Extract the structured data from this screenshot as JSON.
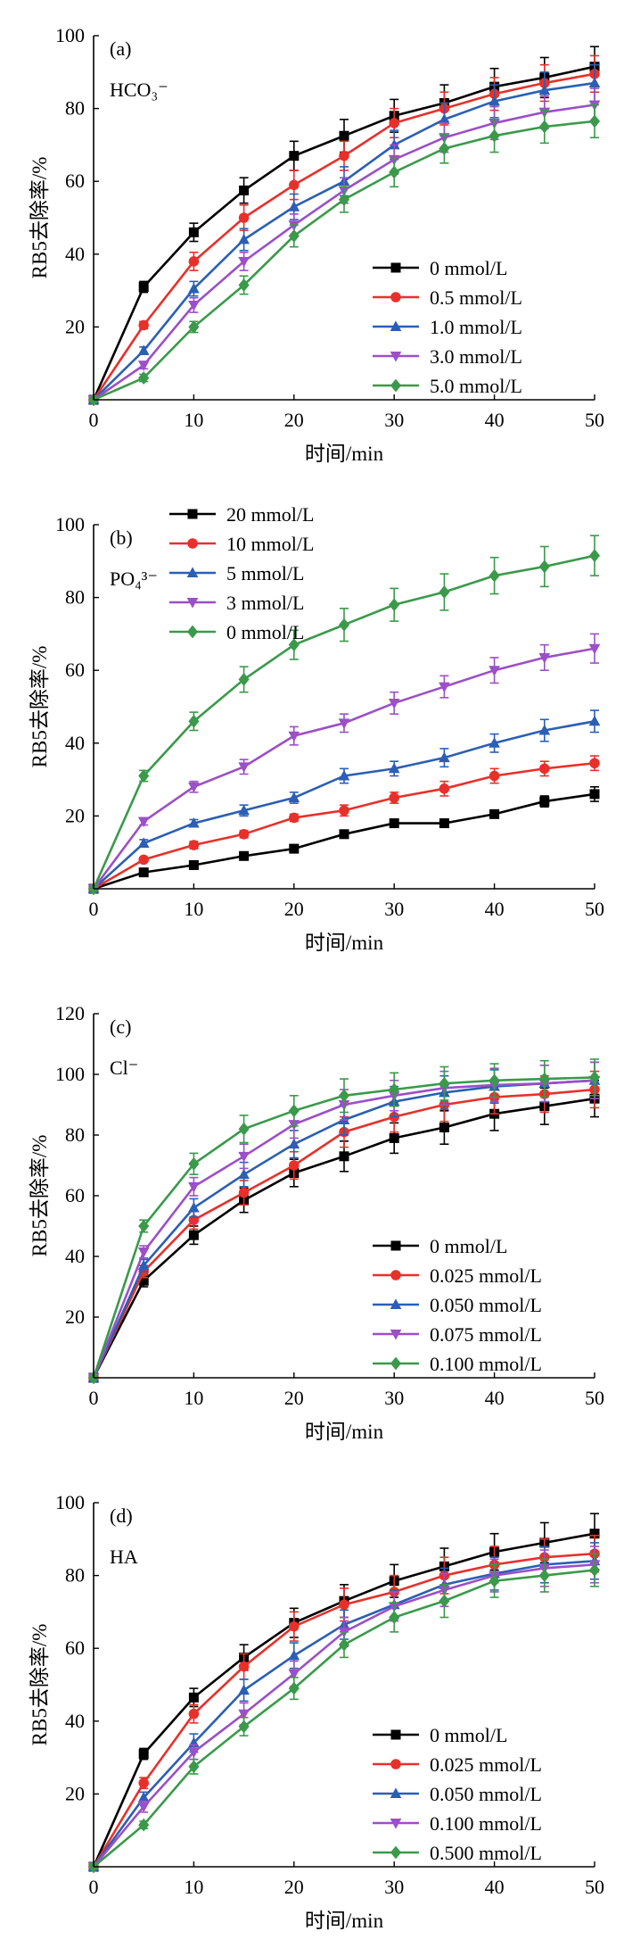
{
  "chart_data": [
    {
      "type": "line",
      "panel_label": "(a)",
      "annotation": "HCO₃⁻",
      "xlabel": "时间/min",
      "ylabel": "RB5去除率/%",
      "xlim": [
        0,
        50
      ],
      "ylim": [
        0,
        100
      ],
      "xticks": [
        0,
        10,
        20,
        30,
        40,
        50
      ],
      "yticks": [
        20,
        40,
        60,
        80,
        100
      ],
      "legend_position": "bottom-right",
      "x": [
        0,
        5,
        10,
        15,
        20,
        25,
        30,
        35,
        40,
        45,
        50
      ],
      "series": [
        {
          "name": "0 mmol/L",
          "color": "#000000",
          "marker": "square",
          "values": [
            0,
            31,
            46,
            57.5,
            67,
            72.5,
            78,
            81.5,
            86,
            88.5,
            91.5
          ],
          "errors": [
            0,
            1.5,
            2.5,
            3.5,
            4,
            4.5,
            4.5,
            5,
            5,
            5.5,
            5.5
          ]
        },
        {
          "name": "0.5 mmol/L",
          "color": "#e8302a",
          "marker": "circle",
          "values": [
            0,
            20.5,
            38,
            50,
            59,
            67,
            76,
            80,
            84,
            87,
            89.5
          ],
          "errors": [
            0,
            1,
            2.5,
            3.5,
            4,
            4,
            4,
            4.5,
            4.5,
            5,
            5
          ]
        },
        {
          "name": "1.0 mmol/L",
          "color": "#2b5fb5",
          "marker": "triangle-up",
          "values": [
            0,
            13.5,
            30.5,
            44,
            53,
            60,
            70,
            77,
            82,
            85,
            87
          ],
          "errors": [
            0,
            1,
            2,
            3,
            3.5,
            4,
            4,
            4.5,
            4.5,
            5,
            5
          ]
        },
        {
          "name": "3.0 mmol/L",
          "color": "#9b4fc8",
          "marker": "triangle-down",
          "values": [
            0,
            9.5,
            26,
            38,
            48,
            57.5,
            66,
            72,
            76,
            79,
            81
          ],
          "errors": [
            0,
            1,
            2,
            2.5,
            3,
            3.5,
            4,
            4,
            4.5,
            4.5,
            4.5
          ]
        },
        {
          "name": "5.0 mmol/L",
          "color": "#3a9a4a",
          "marker": "diamond",
          "values": [
            0,
            6,
            20,
            31.5,
            45,
            55,
            62.5,
            69,
            72.5,
            75,
            76.5
          ],
          "errors": [
            0,
            1,
            1.5,
            2.5,
            3,
            3.5,
            4,
            4,
            4.5,
            4.5,
            4.5
          ]
        }
      ]
    },
    {
      "type": "line",
      "panel_label": "(b)",
      "annotation": "PO₄³⁻",
      "xlabel": "时间/min",
      "ylabel": "RB5去除率/%",
      "xlim": [
        0,
        50
      ],
      "ylim": [
        0,
        100
      ],
      "xticks": [
        0,
        10,
        20,
        30,
        40,
        50
      ],
      "yticks": [
        20,
        40,
        60,
        80,
        100
      ],
      "legend_position": "top-left",
      "x": [
        0,
        5,
        10,
        15,
        20,
        25,
        30,
        35,
        40,
        45,
        50
      ],
      "series": [
        {
          "name": "20 mmol/L",
          "color": "#000000",
          "marker": "square",
          "values": [
            0,
            4.5,
            6.5,
            9,
            11,
            15,
            18,
            18,
            20.5,
            24,
            26
          ],
          "errors": [
            0,
            0.5,
            0.5,
            0.5,
            0.5,
            1,
            1,
            1,
            1,
            1.5,
            2
          ]
        },
        {
          "name": "10 mmol/L",
          "color": "#e8302a",
          "marker": "circle",
          "values": [
            0,
            8,
            12,
            15,
            19.5,
            21.5,
            25,
            27.5,
            31,
            33,
            34.5
          ],
          "errors": [
            0,
            0.5,
            1,
            1,
            1,
            1.5,
            1.5,
            2,
            2,
            2,
            2
          ]
        },
        {
          "name": "5 mmol/L",
          "color": "#2b5fb5",
          "marker": "triangle-up",
          "values": [
            0,
            12.5,
            18,
            21.5,
            25,
            31,
            33,
            36,
            40,
            43.5,
            46
          ],
          "errors": [
            0,
            1,
            1,
            1.5,
            1.5,
            2,
            2,
            2.5,
            2.5,
            3,
            3
          ]
        },
        {
          "name": "3 mmol/L",
          "color": "#9b4fc8",
          "marker": "triangle-down",
          "values": [
            0,
            18.5,
            28,
            33.5,
            42,
            45.5,
            51,
            55.5,
            60,
            63.5,
            66
          ],
          "errors": [
            0,
            1,
            1.5,
            2,
            2.5,
            2.5,
            3,
            3,
            3.5,
            3.5,
            4
          ]
        },
        {
          "name": "0 mmol/L",
          "color": "#3a9a4a",
          "marker": "diamond",
          "values": [
            0,
            31,
            46,
            57.5,
            67,
            72.5,
            78,
            81.5,
            86,
            88.5,
            91.5
          ],
          "errors": [
            0,
            1.5,
            2.5,
            3.5,
            4,
            4.5,
            4.5,
            5,
            5,
            5.5,
            5.5
          ]
        }
      ]
    },
    {
      "type": "line",
      "panel_label": "(c)",
      "annotation": "Cl⁻",
      "xlabel": "时间/min",
      "ylabel": "RB5去除率/%",
      "xlim": [
        0,
        50
      ],
      "ylim": [
        0,
        120
      ],
      "xticks": [
        0,
        10,
        20,
        30,
        40,
        50
      ],
      "yticks": [
        20,
        40,
        60,
        80,
        100,
        120
      ],
      "legend_position": "bottom-right",
      "x": [
        0,
        5,
        10,
        15,
        20,
        25,
        30,
        35,
        40,
        45,
        50
      ],
      "series": [
        {
          "name": "0 mmol/L",
          "color": "#000000",
          "marker": "square",
          "values": [
            0,
            32,
            47,
            58.5,
            67.5,
            73,
            79,
            82.5,
            87,
            89.5,
            92
          ],
          "errors": [
            0,
            2,
            3,
            4,
            4.5,
            5,
            5,
            5.5,
            5.5,
            6,
            6
          ]
        },
        {
          "name": "0.025 mmol/L",
          "color": "#e8302a",
          "marker": "circle",
          "values": [
            0,
            35,
            52,
            61,
            70,
            81,
            86,
            90,
            92.5,
            93.5,
            95
          ],
          "errors": [
            0,
            2,
            3,
            4,
            4.5,
            5,
            5,
            5.5,
            5.5,
            6,
            6
          ]
        },
        {
          "name": "0.050 mmol/L",
          "color": "#2b5fb5",
          "marker": "triangle-up",
          "values": [
            0,
            37,
            56,
            67,
            77,
            85,
            91,
            94,
            96,
            97,
            98
          ],
          "errors": [
            0,
            2,
            3,
            4,
            4.5,
            5,
            5,
            5.5,
            5.5,
            6,
            6
          ]
        },
        {
          "name": "0.075 mmol/L",
          "color": "#9b4fc8",
          "marker": "triangle-down",
          "values": [
            0,
            41.5,
            63,
            73,
            83.5,
            90,
            93,
            95.5,
            96.5,
            97,
            98
          ],
          "errors": [
            0,
            2,
            3,
            4,
            4.5,
            5,
            5,
            5.5,
            5.5,
            6,
            6
          ]
        },
        {
          "name": "0.100 mmol/L",
          "color": "#3a9a4a",
          "marker": "diamond",
          "values": [
            0,
            50,
            70.5,
            82,
            88,
            93,
            95,
            97,
            98,
            98.5,
            99
          ],
          "errors": [
            0,
            2,
            3.5,
            4.5,
            5,
            5.5,
            5.5,
            5.5,
            5.5,
            6,
            6
          ]
        }
      ]
    },
    {
      "type": "line",
      "panel_label": "(d)",
      "annotation": "HA",
      "xlabel": "时间/min",
      "ylabel": "RB5去除率/%",
      "xlim": [
        0,
        50
      ],
      "ylim": [
        0,
        100
      ],
      "xticks": [
        0,
        10,
        20,
        30,
        40,
        50
      ],
      "yticks": [
        20,
        40,
        60,
        80,
        100
      ],
      "legend_position": "bottom-right",
      "x": [
        0,
        5,
        10,
        15,
        20,
        25,
        30,
        35,
        40,
        45,
        50
      ],
      "series": [
        {
          "name": "0 mmol/L",
          "color": "#000000",
          "marker": "square",
          "values": [
            0,
            31,
            46.5,
            57.5,
            67,
            73,
            78.5,
            82.5,
            86.5,
            89,
            91.5
          ],
          "errors": [
            0,
            1.5,
            2.5,
            3.5,
            4,
            4.5,
            4.5,
            5,
            5,
            5.5,
            5.5
          ]
        },
        {
          "name": "0.025 mmol/L",
          "color": "#e8302a",
          "marker": "circle",
          "values": [
            0,
            23,
            42,
            55,
            66,
            72,
            75.5,
            80,
            83,
            85,
            86
          ],
          "errors": [
            0,
            1.5,
            2.5,
            3.5,
            4,
            4.5,
            4.5,
            5,
            5,
            5,
            5
          ]
        },
        {
          "name": "0.050 mmol/L",
          "color": "#2b5fb5",
          "marker": "triangle-up",
          "values": [
            0,
            19,
            34,
            48.5,
            58,
            66.5,
            72,
            77.5,
            80.5,
            83,
            84
          ],
          "errors": [
            0,
            1.5,
            2.5,
            3,
            3.5,
            4,
            4,
            4.5,
            4.5,
            5,
            5
          ]
        },
        {
          "name": "0.100 mmol/L",
          "color": "#9b4fc8",
          "marker": "triangle-down",
          "values": [
            0,
            16.5,
            31.5,
            42,
            53,
            64.5,
            71.5,
            76,
            80,
            82,
            83
          ],
          "errors": [
            0,
            1.5,
            2,
            3,
            3.5,
            4,
            4,
            4.5,
            4.5,
            5,
            5
          ]
        },
        {
          "name": "0.500 mmol/L",
          "color": "#3a9a4a",
          "marker": "diamond",
          "values": [
            0,
            11.5,
            27.5,
            38.5,
            49,
            61,
            68.5,
            73,
            78.5,
            80,
            81.5
          ],
          "errors": [
            0,
            1,
            2,
            2.5,
            3,
            3.5,
            4,
            4.5,
            4.5,
            4.5,
            4.5
          ]
        }
      ]
    }
  ]
}
